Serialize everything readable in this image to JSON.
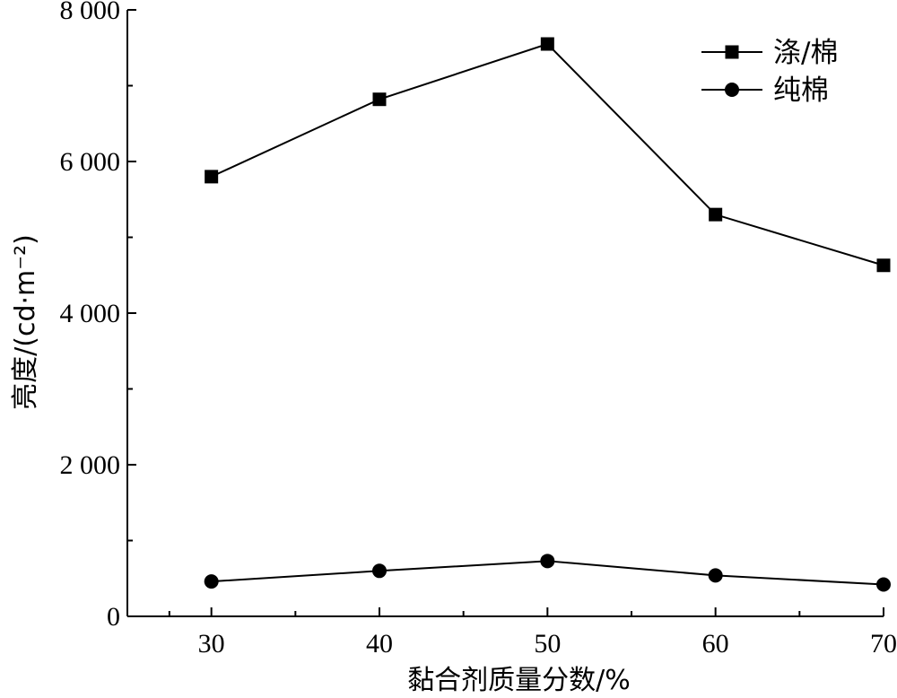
{
  "chart_data": {
    "type": "line",
    "xlabel": "黏合剂质量分数/%",
    "ylabel": "亮度/(cd·m⁻²)",
    "x": [
      30,
      40,
      50,
      60,
      70
    ],
    "x_ticks": [
      "30",
      "40",
      "50",
      "60",
      "70"
    ],
    "xlim": [
      25,
      70
    ],
    "ylim": [
      0,
      8000
    ],
    "y_ticks": [
      {
        "value": 0,
        "label": "0"
      },
      {
        "value": 2000,
        "label": "2 000"
      },
      {
        "value": 4000,
        "label": "4 000"
      },
      {
        "value": 6000,
        "label": "6 000"
      },
      {
        "value": 8000,
        "label": "8 000"
      }
    ],
    "series": [
      {
        "name": "涤/棉",
        "marker": "square",
        "values": [
          5800,
          6820,
          7550,
          5300,
          4630
        ]
      },
      {
        "name": "纯棉",
        "marker": "circle",
        "values": [
          460,
          600,
          730,
          540,
          420
        ]
      }
    ],
    "legend_position": "top-right",
    "grid": false
  }
}
